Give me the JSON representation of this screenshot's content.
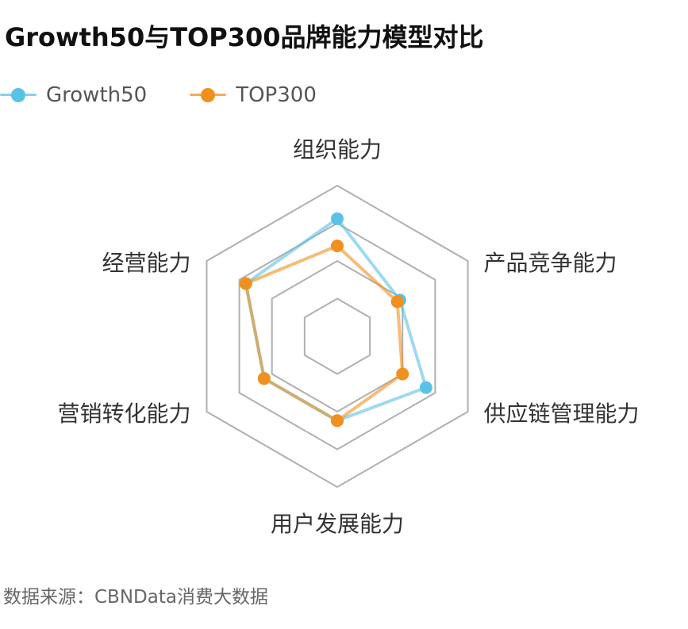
{
  "title": "Growth50与TOP300品牌能力模型对比",
  "legend": [
    {
      "name": "Growth50",
      "color": "#5bc2e7"
    },
    {
      "name": "TOP300",
      "color": "#f0901e"
    }
  ],
  "source": "数据来源：CBNData消费大数据",
  "chart_data": {
    "type": "radar",
    "title": "Growth50与TOP300品牌能力模型对比",
    "axes": [
      "组织能力",
      "产品竞争能力",
      "供应链管理能力",
      "用户发展能力",
      "营销转化能力",
      "经营能力"
    ],
    "range": [
      0,
      100
    ],
    "grid_levels": 4,
    "series": [
      {
        "name": "Growth50",
        "color": "#5bc2e7",
        "values": [
          78,
          48,
          68,
          56,
          56,
          70
        ]
      },
      {
        "name": "TOP300",
        "color": "#f0901e",
        "values": [
          60,
          46,
          50,
          56,
          56,
          70
        ]
      }
    ]
  }
}
